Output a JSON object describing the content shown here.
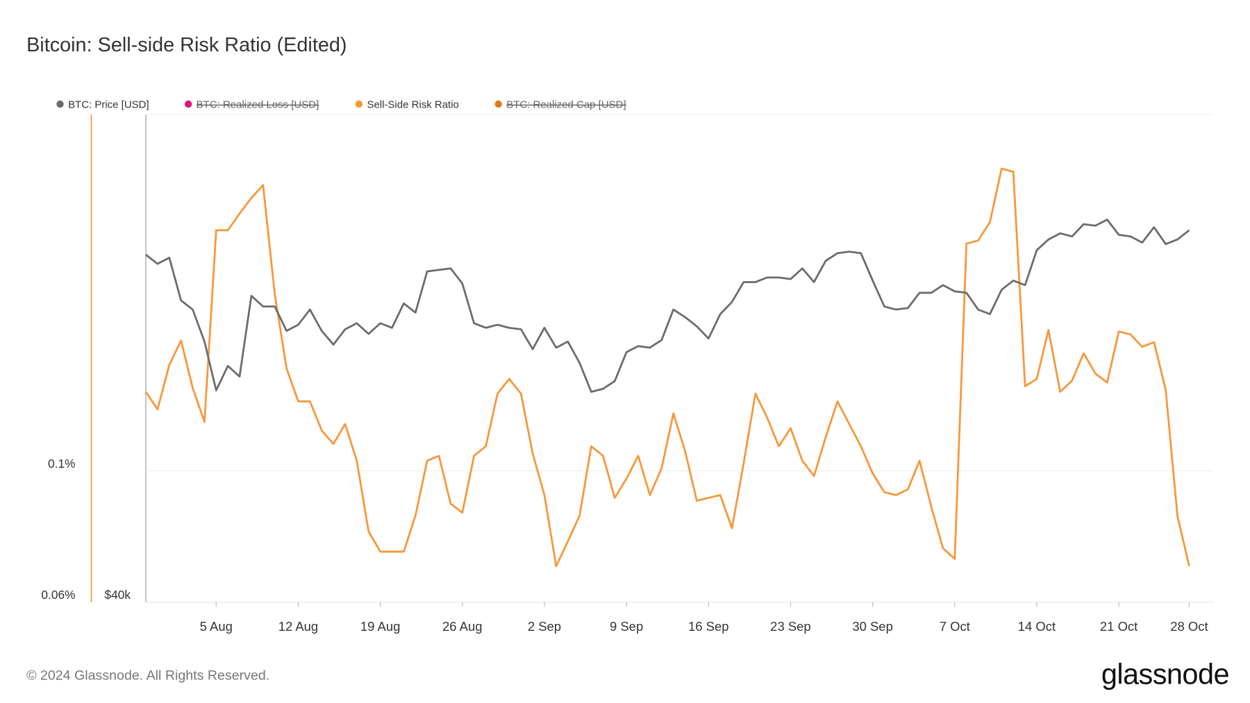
{
  "title": "Bitcoin: Sell-side Risk Ratio (Edited)",
  "footer": "© 2024 Glassnode. All Rights Reserved.",
  "logo": "glassnode",
  "chart_data": {
    "type": "line",
    "categories": [
      null,
      null,
      null,
      null,
      null,
      null,
      "5 Aug",
      null,
      null,
      null,
      null,
      null,
      null,
      "12 Aug",
      null,
      null,
      null,
      null,
      null,
      null,
      "19 Aug",
      null,
      null,
      null,
      null,
      null,
      null,
      "26 Aug",
      null,
      null,
      null,
      null,
      null,
      null,
      "2 Sep",
      null,
      null,
      null,
      null,
      null,
      null,
      "9 Sep",
      null,
      null,
      null,
      null,
      null,
      null,
      "16 Sep",
      null,
      null,
      null,
      null,
      null,
      null,
      "23 Sep",
      null,
      null,
      null,
      null,
      null,
      null,
      "30 Sep",
      null,
      null,
      null,
      null,
      null,
      null,
      "7 Oct",
      null,
      null,
      null,
      null,
      null,
      null,
      "14 Oct",
      null,
      null,
      null,
      null,
      null,
      null,
      "21 Oct",
      null,
      null,
      null,
      null,
      null,
      "28 Oct"
    ],
    "series": [
      {
        "name": "BTC: Price [USD]",
        "color": "#6b6b6b",
        "axis": "y2",
        "hidden": false,
        "values": [
          62800,
          62200,
          62600,
          59800,
          59200,
          57100,
          53900,
          55500,
          54800,
          60100,
          59400,
          59400,
          57800,
          58200,
          59200,
          57800,
          56900,
          57900,
          58300,
          57600,
          58300,
          58000,
          59600,
          59000,
          61700,
          61800,
          61900,
          60900,
          58300,
          58000,
          58200,
          58000,
          57900,
          56600,
          58000,
          56700,
          57100,
          55700,
          53800,
          54000,
          54500,
          56400,
          56800,
          56700,
          57200,
          59200,
          58700,
          58100,
          57300,
          58900,
          59700,
          61000,
          61000,
          61300,
          61300,
          61200,
          61900,
          61000,
          62400,
          62900,
          63000,
          62900,
          61100,
          59400,
          59200,
          59300,
          60300,
          60300,
          60800,
          60400,
          60300,
          59200,
          58900,
          60500,
          61100,
          60800,
          63100,
          63800,
          64200,
          64000,
          64800,
          64700,
          65100,
          64100,
          64000,
          63600,
          64600,
          63500,
          63800,
          64400
        ]
      },
      {
        "name": "BTC: Realized Loss [USD]",
        "color": "#e0147f",
        "hidden": true,
        "values": null
      },
      {
        "name": "Sell-Side Risk Ratio",
        "color": "#f7973a",
        "axis": "y",
        "hidden": false,
        "values": [
          0.136,
          0.127,
          0.151,
          0.166,
          0.138,
          0.121,
          0.255,
          0.255,
          0.272,
          0.289,
          0.304,
          0.199,
          0.149,
          0.131,
          0.131,
          0.117,
          0.111,
          0.12,
          0.104,
          0.079,
          0.073,
          0.073,
          0.073,
          0.084,
          0.104,
          0.106,
          0.088,
          0.085,
          0.106,
          0.11,
          0.135,
          0.143,
          0.135,
          0.107,
          0.091,
          0.069,
          0.076,
          0.084,
          0.11,
          0.106,
          0.09,
          0.097,
          0.106,
          0.091,
          0.101,
          0.125,
          0.108,
          0.089,
          0.09,
          0.091,
          0.08,
          0.103,
          0.135,
          0.123,
          0.11,
          0.118,
          0.104,
          0.098,
          0.114,
          0.131,
          0.12,
          0.11,
          0.099,
          0.092,
          0.091,
          0.093,
          0.104,
          0.087,
          0.074,
          0.071,
          0.242,
          0.245,
          0.263,
          0.324,
          0.32,
          0.139,
          0.143,
          0.173,
          0.136,
          0.142,
          0.158,
          0.146,
          0.141,
          0.172,
          0.17,
          0.162,
          0.165,
          0.137,
          0.084,
          0.069
        ]
      },
      {
        "name": "BTC: Realized Cap [USD]",
        "color": "#e07a1a",
        "hidden": true,
        "values": null
      }
    ],
    "ylog": true,
    "ylim": [
      0.06,
      0.4
    ],
    "yticks": [
      {
        "value": 0.06,
        "label": "0.06%"
      },
      {
        "value": 0.1,
        "label": "0.1%"
      }
    ],
    "y2lim": [
      40000,
      72000
    ],
    "y2ticks": [
      {
        "value": 40000,
        "label": "$40k"
      }
    ],
    "grid": true
  }
}
